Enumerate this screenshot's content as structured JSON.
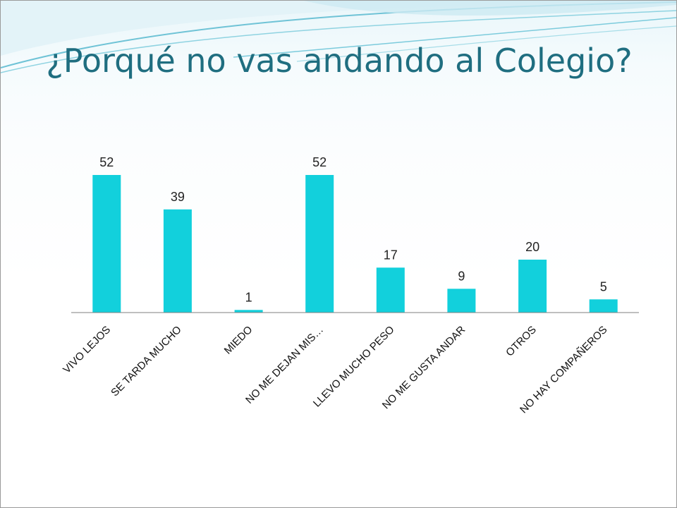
{
  "slide": {
    "title": "¿Porqué no vas andando al Colegio?"
  },
  "colors": {
    "bar": "#12d0dc",
    "title": "#1f6e80",
    "axis": "#7f7f7f"
  },
  "chart_data": {
    "type": "bar",
    "categories": [
      "VIVO LEJOS",
      "SE TARDA MUCHO",
      "MIEDO",
      "NO ME DEJAN MIS…",
      "LLEVO MUCHO PESO",
      "NO ME GUSTA ANDAR",
      "OTROS",
      "NO HAY COMPAÑEROS"
    ],
    "values": [
      52,
      39,
      1,
      52,
      17,
      9,
      20,
      5
    ],
    "ylim": [
      0,
      52
    ],
    "grid": false,
    "legend": "none",
    "data_labels": true,
    "xlabel": "",
    "ylabel": ""
  }
}
